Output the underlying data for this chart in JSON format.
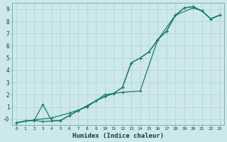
{
  "bg_color": "#cce8ea",
  "grid_color": "#b5d5d8",
  "line_color": "#1a7a6e",
  "xlabel": "Humidex (Indice chaleur)",
  "xlim": [
    -0.5,
    23.5
  ],
  "ylim": [
    -0.45,
    9.5
  ],
  "xticks": [
    0,
    1,
    2,
    3,
    4,
    5,
    6,
    7,
    8,
    9,
    10,
    11,
    12,
    13,
    14,
    15,
    16,
    17,
    18,
    19,
    20,
    21,
    22,
    23
  ],
  "yticks": [
    0,
    1,
    2,
    3,
    4,
    5,
    6,
    7,
    8,
    9
  ],
  "ytick_labels": [
    "-0",
    "1",
    "2",
    "3",
    "4",
    "5",
    "6",
    "7",
    "8",
    "9"
  ],
  "curve1_x": [
    0,
    1,
    2,
    3,
    4,
    5,
    6,
    7,
    8,
    9,
    10,
    11,
    12,
    13,
    14,
    15,
    16,
    17,
    18,
    19,
    20,
    21,
    22,
    23
  ],
  "curve1_y": [
    -0.3,
    -0.15,
    -0.1,
    1.2,
    -0.15,
    -0.1,
    0.3,
    0.7,
    1.1,
    1.5,
    1.85,
    2.1,
    2.6,
    4.6,
    5.0,
    5.5,
    6.5,
    7.2,
    8.5,
    9.1,
    9.2,
    8.85,
    8.2,
    8.5
  ],
  "curve2_x": [
    0,
    1,
    2,
    3,
    4,
    5,
    6,
    7,
    8,
    9,
    10,
    11,
    12,
    13,
    14,
    15,
    16,
    17,
    18,
    19,
    20,
    21,
    22,
    23
  ],
  "curve2_y": [
    -0.3,
    -0.15,
    -0.1,
    -0.2,
    -0.15,
    -0.1,
    0.3,
    0.7,
    1.1,
    1.5,
    1.85,
    2.1,
    2.6,
    4.6,
    5.0,
    5.5,
    6.5,
    7.2,
    8.5,
    9.1,
    9.2,
    8.85,
    8.2,
    8.5
  ],
  "curve3_x": [
    0,
    2,
    4,
    6,
    8,
    10,
    12,
    14,
    16,
    18,
    20,
    21,
    22,
    23
  ],
  "curve3_y": [
    -0.3,
    -0.05,
    0.1,
    0.5,
    1.0,
    2.0,
    2.2,
    2.3,
    6.5,
    8.5,
    9.1,
    8.85,
    8.2,
    8.5
  ]
}
